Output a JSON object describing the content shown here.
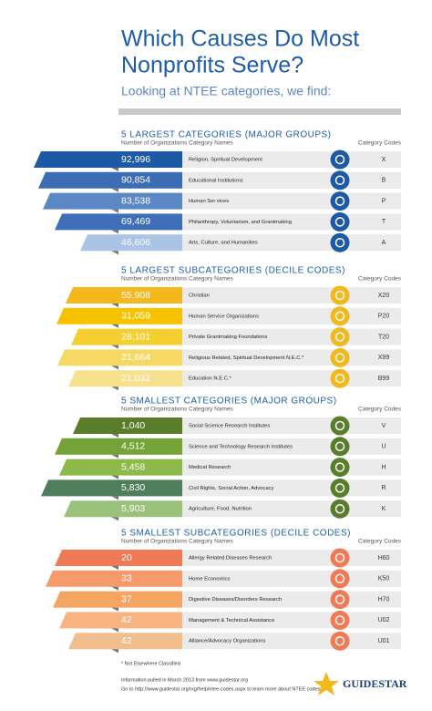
{
  "title_lines": [
    "Which Causes Do Most",
    "Nonprofits Serve?"
  ],
  "subtitle": "Looking at NTEE categories, we find:",
  "sections": [
    {
      "heading": "5 LARGEST CATEGORIES (MAJOR GROUPS)",
      "col_count": "Number of Organizations",
      "col_name": "Category Names",
      "col_code": "Category Codes",
      "rows": [
        {
          "count": "92,996",
          "name": "Religion, Spiritual Development",
          "code": "X"
        },
        {
          "count": "90,854",
          "name": "Educational Institutions",
          "code": "B"
        },
        {
          "count": "83,538",
          "name": "Human Ser vices",
          "code": "P"
        },
        {
          "count": "69,469",
          "name": "Philanthropy, Voluntarism, and Grantmaking",
          "code": "T"
        },
        {
          "count": "46,606",
          "name": "Arts, Culture, and Humanities",
          "code": "A"
        }
      ]
    },
    {
      "heading": "5 LARGEST SUBCATEGORIES (DECILE CODES)",
      "col_count": "Number of Organizations",
      "col_name": "Category Names",
      "col_code": "Category Codes",
      "rows": [
        {
          "count": "55,908",
          "name": "Christian",
          "code": "X20"
        },
        {
          "count": "31,059",
          "name": "Human Service Organizations",
          "code": "P20"
        },
        {
          "count": "28,101",
          "name": "Private Grantmaking Foundations",
          "code": "T20"
        },
        {
          "count": "21,664",
          "name": "Religious Related, Spiritual Development N.E.C.*",
          "code": "X99"
        },
        {
          "count": "21,032",
          "name": "Education N.E.C.*",
          "code": "B99"
        }
      ]
    },
    {
      "heading": "5 SMALLEST CATEGORIES (MAJOR GROUPS)",
      "col_count": "Number of Organizations",
      "col_name": "Category Names",
      "col_code": "Category Codes",
      "rows": [
        {
          "count": "1,040",
          "name": "Social Science Research Institutes",
          "code": "V"
        },
        {
          "count": "4,512",
          "name": "Science and Technology Research Institutes",
          "code": "U"
        },
        {
          "count": "5,458",
          "name": "Medical Research",
          "code": "H"
        },
        {
          "count": "5,830",
          "name": "Civil Rights, Social Action, Advocacy",
          "code": "R"
        },
        {
          "count": "5,903",
          "name": "Agriculture, Food, Nutrition",
          "code": "K"
        }
      ]
    },
    {
      "heading": "5 SMALLEST SUBCATEGORIES (DECILE CODES)",
      "col_count": "Number of Organizations",
      "col_name": "Category Names",
      "col_code": "Category Codes",
      "rows": [
        {
          "count": "20",
          "name": "Allergy Related Diseases Research",
          "code": "H60"
        },
        {
          "count": "33",
          "name": "Home Economics",
          "code": "K50"
        },
        {
          "count": "37",
          "name": "Digestive Diseases/Disorders Research",
          "code": "H70"
        },
        {
          "count": "42",
          "name": "Management & Technical Assistance",
          "code": "U02"
        },
        {
          "count": "42",
          "name": "Alliance/Advocacy Organizations",
          "code": "U01"
        }
      ]
    }
  ],
  "footnote": "* Not Elsewhere Classified",
  "source_lines": [
    "Information pulled in March 2013 from www.guidestar.org",
    "Go to http://www.guidestar.org/rxg/help/ntee-codes.aspx to learn more about NTEE codes"
  ],
  "logo": "GUIDESTAR"
}
